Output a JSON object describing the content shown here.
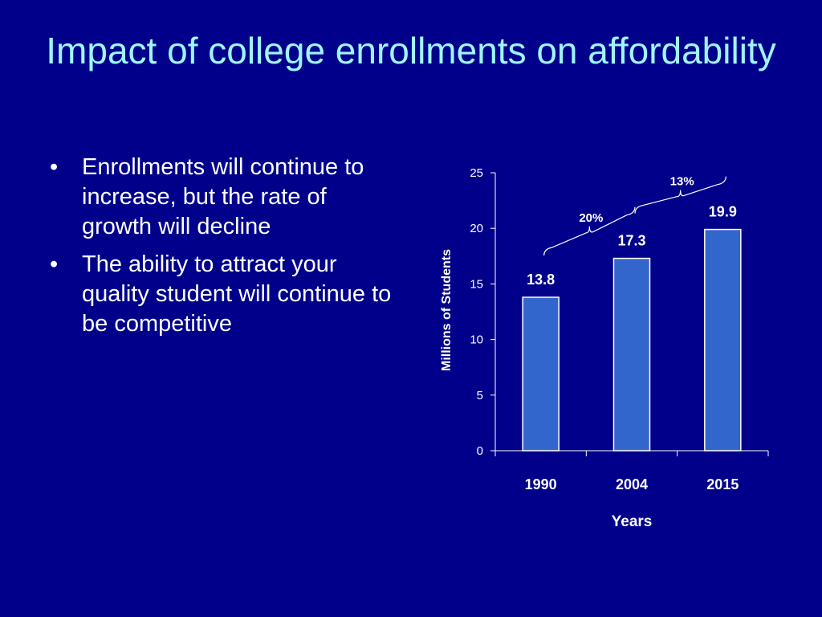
{
  "slide": {
    "title": "Impact of college enrollments on affordability",
    "bullets": [
      "Enrollments will continue to increase, but the rate of growth will decline",
      "The ability to attract your quality student will continue to be competitive"
    ],
    "bullet_glyph": "•"
  },
  "colors": {
    "background": "#00008b",
    "title": "#9ff5ff",
    "text": "#ffffff",
    "bar_fill": "#3366cc",
    "bar_stroke": "#ffffff"
  },
  "chart_data": {
    "type": "bar",
    "categories": [
      "1990",
      "2004",
      "2015"
    ],
    "values": [
      13.8,
      17.3,
      19.9
    ],
    "data_labels": [
      "13.8",
      "17.3",
      "19.9"
    ],
    "xlabel": "Years",
    "ylabel": "Millions of Students",
    "ylim": [
      0,
      25
    ],
    "yticks": [
      0,
      5,
      10,
      15,
      20,
      25
    ],
    "grid": false,
    "legend": "none",
    "annotations": [
      {
        "text": "20%",
        "from": "1990",
        "to": "2004"
      },
      {
        "text": "13%",
        "from": "2004",
        "to": "2015"
      }
    ]
  }
}
